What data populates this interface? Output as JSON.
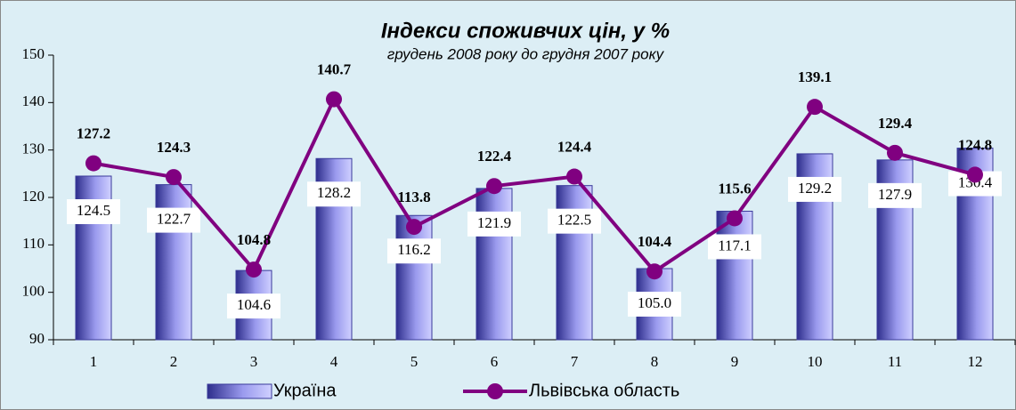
{
  "chart_data": {
    "type": "bar-line",
    "title": "Індекси споживчих цін, у %",
    "subtitle": "грудень 2008 року до грудня 2007 року",
    "categories": [
      "1",
      "2",
      "3",
      "4",
      "5",
      "6",
      "7",
      "8",
      "9",
      "10",
      "11",
      "12"
    ],
    "series": [
      {
        "name": "Україна",
        "type": "bar",
        "color": "#3a3a9a",
        "values": [
          124.5,
          122.7,
          104.6,
          128.2,
          116.2,
          121.9,
          122.5,
          105.0,
          117.1,
          129.2,
          127.9,
          130.4
        ],
        "value_labels": [
          "124.5",
          "122.7",
          "104.6",
          "128.2",
          "116.2",
          "121.9",
          "122.5",
          "105.0",
          "117.1",
          "129.2",
          "127.9",
          "130.4"
        ]
      },
      {
        "name": "Львівська область",
        "type": "line",
        "color": "#800080",
        "values": [
          127.2,
          124.3,
          104.8,
          140.7,
          113.8,
          122.4,
          124.4,
          104.4,
          115.6,
          139.1,
          129.4,
          124.8
        ]
      }
    ],
    "ylim": [
      90,
      150
    ],
    "yticks": [
      90,
      100,
      110,
      120,
      130,
      140,
      150
    ],
    "grid": false,
    "legend": "bottom"
  }
}
